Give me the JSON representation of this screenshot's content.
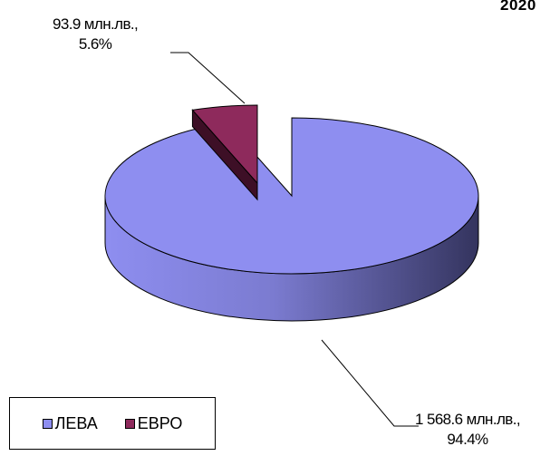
{
  "title": "2020",
  "chart_data": {
    "type": "pie",
    "style": "3d",
    "unit": "млн.лв.",
    "slices": [
      {
        "name": "ЛЕВА",
        "value": 1568.6,
        "percent": 94.4,
        "label_line1": "1 568.6 млн.лв.,",
        "label_line2": "94.4%",
        "color": "#8e8ef0",
        "dark_color": "#3a3a66"
      },
      {
        "name": "ЕВРО",
        "value": 93.9,
        "percent": 5.6,
        "label_line1": "93.9 млн.лв.,",
        "label_line2": "5.6%",
        "color": "#8e2a5c",
        "dark_color": "#3d0f26",
        "exploded": true
      }
    ],
    "legend_position": "bottom-left"
  }
}
